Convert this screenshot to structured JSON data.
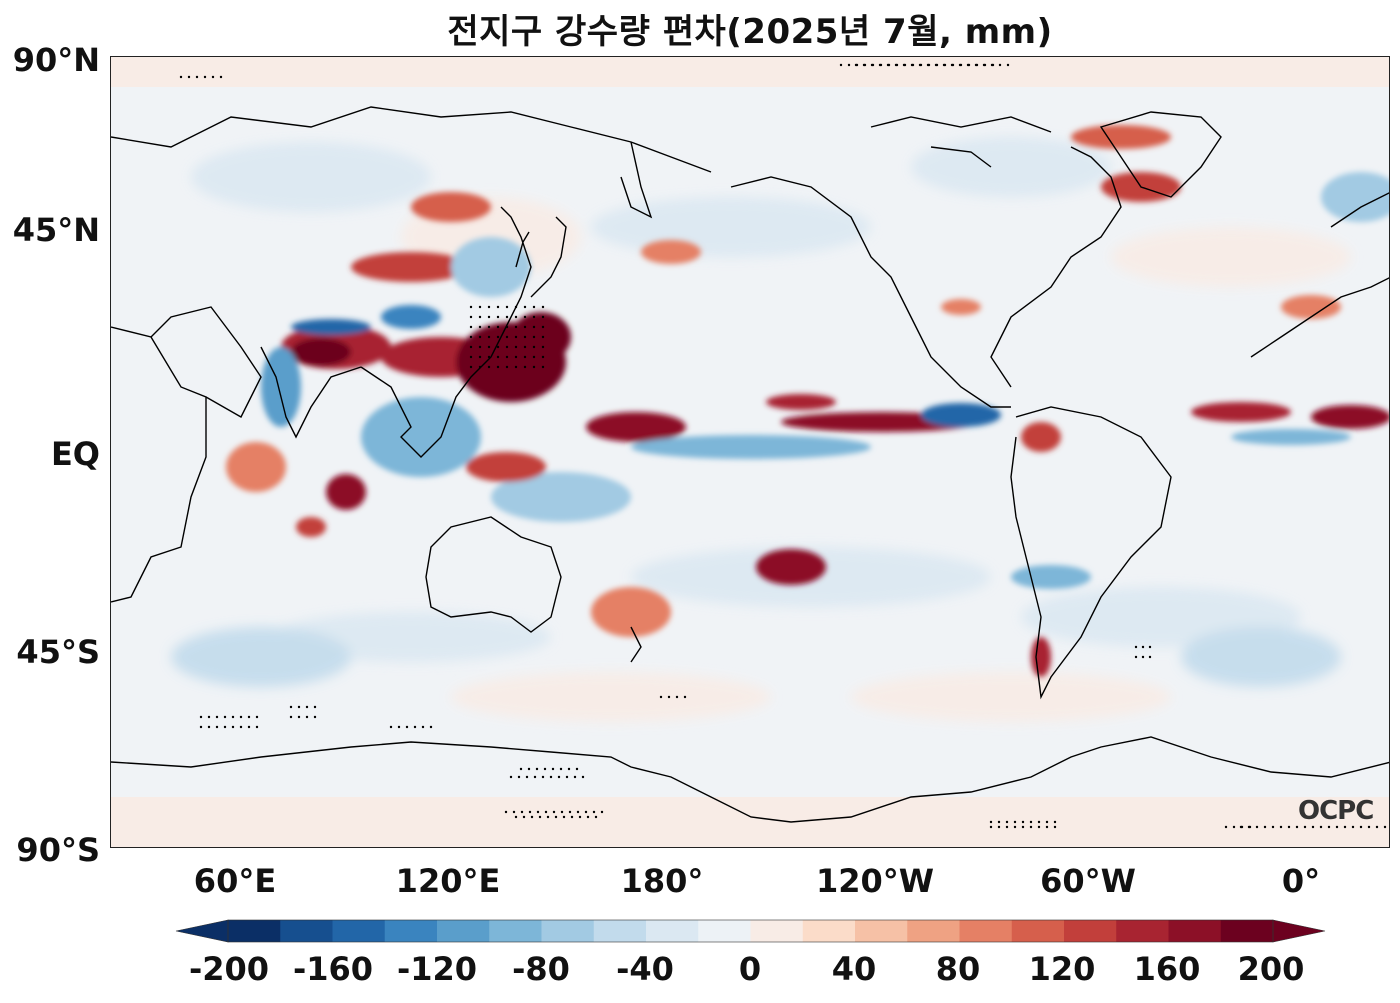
{
  "title": "전지구 강수량 편차(2025년 7월, mm)",
  "logo_text": "OCPC",
  "latitude_labels": [
    "90°N",
    "45°N",
    "EQ",
    "45°S",
    "90°S"
  ],
  "longitude_labels": [
    "60°E",
    "120°E",
    "180°",
    "120°W",
    "60°W",
    "0°"
  ],
  "colorbar": {
    "tick_labels": [
      "-200",
      "-160",
      "-120",
      "-80",
      "-40",
      "0",
      "40",
      "80",
      "120",
      "160",
      "200"
    ],
    "levels": [
      -200,
      -180,
      -160,
      -140,
      -120,
      -100,
      -80,
      -60,
      -40,
      -20,
      0,
      20,
      40,
      60,
      80,
      100,
      120,
      140,
      160,
      180,
      200
    ],
    "colors": [
      "#0b2f66",
      "#164f8f",
      "#2266a8",
      "#3a84bf",
      "#5a9ecb",
      "#7db6d8",
      "#a2cae3",
      "#c2dbec",
      "#dbe8f2",
      "#edf2f6",
      "#f8ece6",
      "#fbdcc9",
      "#f6c1a6",
      "#efa283",
      "#e58065",
      "#d65f4c",
      "#c23f3b",
      "#a82431",
      "#8c1027",
      "#6c011f"
    ],
    "extend": "both",
    "under_color": "#0b2f66",
    "over_color": "#6c011f"
  },
  "colors": {
    "land_outline": "#000000",
    "background_neutral": "#f0f3f6",
    "stipple": "#000000"
  }
}
